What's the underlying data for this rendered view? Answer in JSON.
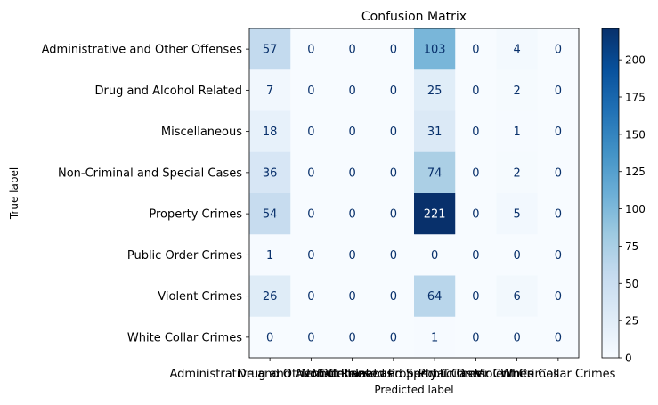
{
  "chart_data": {
    "type": "heatmap",
    "title": "Confusion Matrix",
    "xlabel": "Predicted label",
    "ylabel": "True label",
    "categories": [
      "Administrative and Other Offenses",
      "Drug and Alcohol Related",
      "Miscellaneous",
      "Non-Criminal and Special Cases",
      "Property Crimes",
      "Public Order Crimes",
      "Violent Crimes",
      "White Collar Crimes"
    ],
    "matrix": [
      [
        57,
        0,
        0,
        0,
        103,
        0,
        4,
        0
      ],
      [
        7,
        0,
        0,
        0,
        25,
        0,
        2,
        0
      ],
      [
        18,
        0,
        0,
        0,
        31,
        0,
        1,
        0
      ],
      [
        36,
        0,
        0,
        0,
        74,
        0,
        2,
        0
      ],
      [
        54,
        0,
        0,
        0,
        221,
        0,
        5,
        0
      ],
      [
        1,
        0,
        0,
        0,
        0,
        0,
        0,
        0
      ],
      [
        26,
        0,
        0,
        0,
        64,
        0,
        6,
        0
      ],
      [
        0,
        0,
        0,
        0,
        1,
        0,
        0,
        0
      ]
    ],
    "colormap": "Blues",
    "vmin": 0,
    "vmax": 221,
    "colorbar_ticks": [
      0,
      25,
      50,
      75,
      100,
      125,
      150,
      175,
      200
    ],
    "grid": false
  },
  "colors": {
    "dark_text": "#08306b",
    "light_text": "#ffffff",
    "axis": "#000000"
  }
}
